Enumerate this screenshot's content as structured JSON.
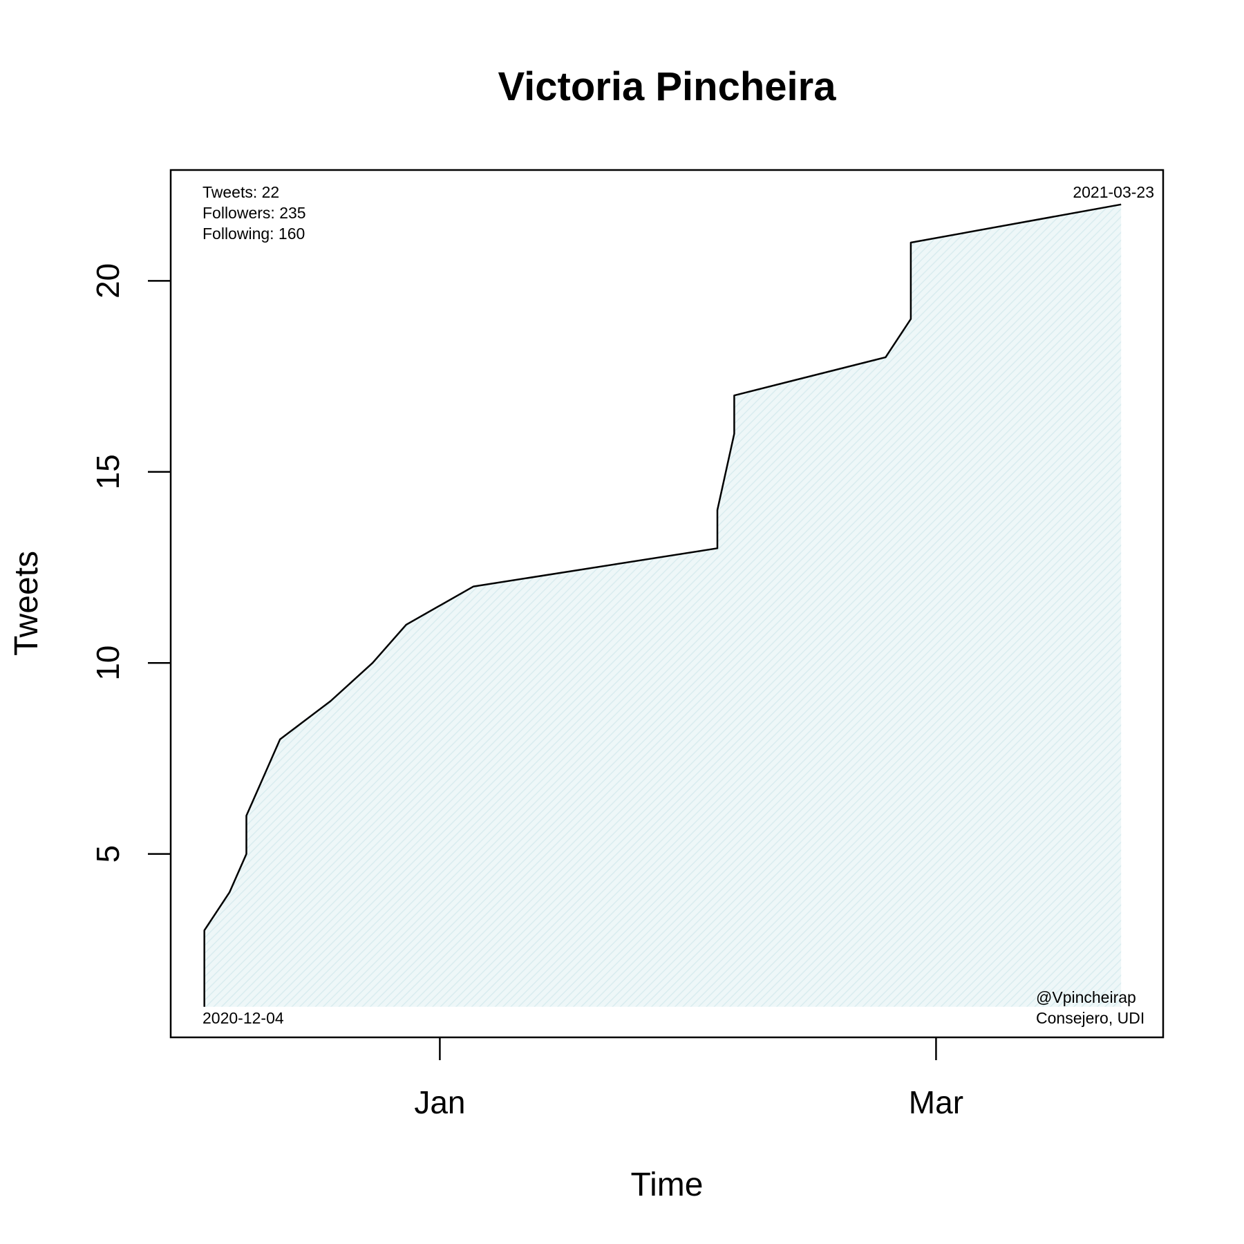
{
  "chart_data": {
    "type": "area",
    "title": "Victoria Pincheira",
    "xlabel": "Time",
    "ylabel": "Tweets",
    "x_tick_labels": [
      {
        "date": "2021-01-01",
        "label": "Jan"
      },
      {
        "date": "2021-03-01",
        "label": "Mar"
      }
    ],
    "y_ticks": [
      5,
      10,
      15,
      20
    ],
    "xlim": [
      "2020-11-30",
      "2021-03-28"
    ],
    "ylim": [
      0.2,
      22.9
    ],
    "grid": false,
    "fill_color": "#e6f3f5",
    "line_color": "#000000",
    "series": [
      {
        "points": [
          {
            "x": "2020-12-04",
            "y": 1
          },
          {
            "x": "2020-12-04",
            "y": 3
          },
          {
            "x": "2020-12-07",
            "y": 4
          },
          {
            "x": "2020-12-09",
            "y": 5
          },
          {
            "x": "2020-12-09",
            "y": 6
          },
          {
            "x": "2020-12-13",
            "y": 8
          },
          {
            "x": "2020-12-19",
            "y": 9
          },
          {
            "x": "2020-12-24",
            "y": 10
          },
          {
            "x": "2020-12-28",
            "y": 11
          },
          {
            "x": "2021-01-05",
            "y": 12
          },
          {
            "x": "2021-02-03",
            "y": 13
          },
          {
            "x": "2021-02-03",
            "y": 14
          },
          {
            "x": "2021-02-05",
            "y": 16
          },
          {
            "x": "2021-02-05",
            "y": 17
          },
          {
            "x": "2021-02-23",
            "y": 18
          },
          {
            "x": "2021-02-26",
            "y": 19
          },
          {
            "x": "2021-02-26",
            "y": 21
          },
          {
            "x": "2021-03-23",
            "y": 22
          }
        ]
      }
    ],
    "annotations": {
      "stats": [
        "Tweets: 22",
        "Followers: 235",
        "Following: 160"
      ],
      "start_date": "2020-12-04",
      "end_date": "2021-03-23",
      "handle": "@Vpincheirap",
      "role": "Consejero, UDI"
    }
  }
}
